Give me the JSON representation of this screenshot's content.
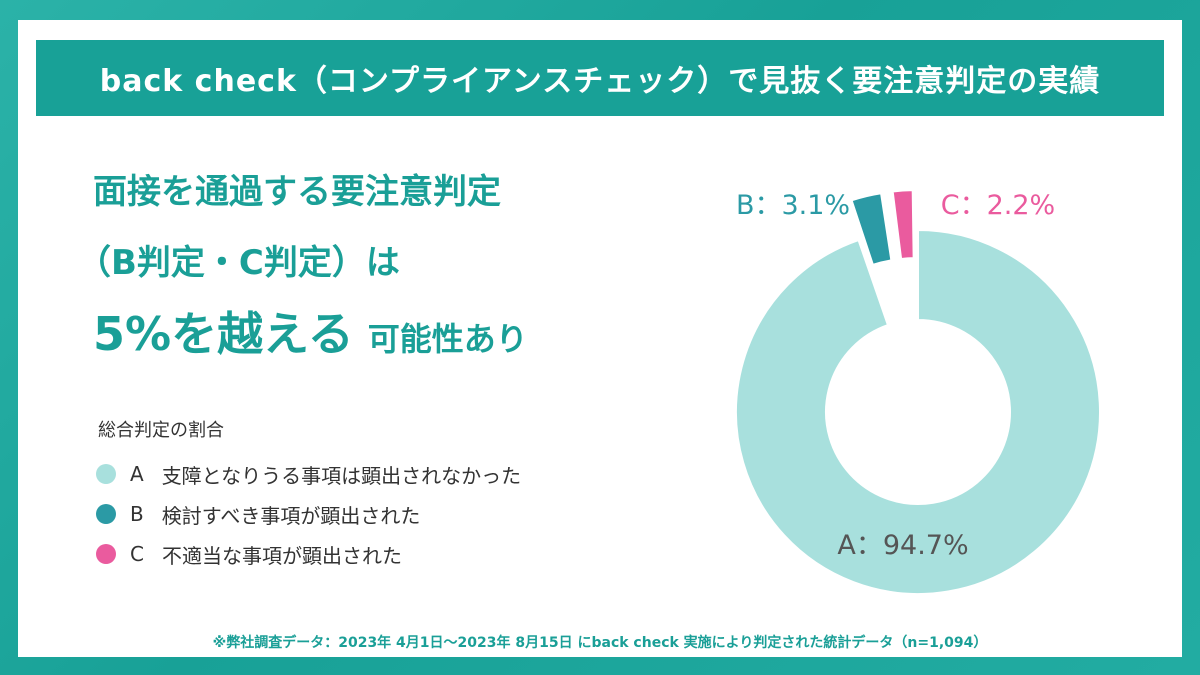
{
  "header": {
    "title": "back check（コンプライアンスチェック）で見抜く要注意判定の実績"
  },
  "headline": {
    "line1": "面接を通過する要注意判定",
    "line2": "（B判定・C判定）は",
    "line3_big": "5%を越える",
    "line3_small": "可能性あり"
  },
  "legend": {
    "title": "総合判定の割合",
    "items": [
      {
        "key": "A",
        "label": "支障となりうる事項は顕出されなかった",
        "color": "#a8e0dd"
      },
      {
        "key": "B",
        "label": "検討すべき事項が顕出された",
        "color": "#2b9aa5"
      },
      {
        "key": "C",
        "label": "不適当な事項が顕出された",
        "color": "#ea5b9e"
      }
    ]
  },
  "chart_data": {
    "type": "pie",
    "donut": true,
    "categories": [
      "A",
      "B",
      "C"
    ],
    "values": [
      94.7,
      3.1,
      2.2
    ],
    "labels": [
      "A：94.7%",
      "B：3.1%",
      "C：2.2%"
    ],
    "colors": [
      "#a8e0dd",
      "#2b9aa5",
      "#ea5b9e"
    ],
    "exploded": [
      "B",
      "C"
    ]
  },
  "footnote": "※弊社調査データ：2023年 4月1日〜2023年 8月15日 にback check 実施により判定された統計データ（n=1,094）"
}
